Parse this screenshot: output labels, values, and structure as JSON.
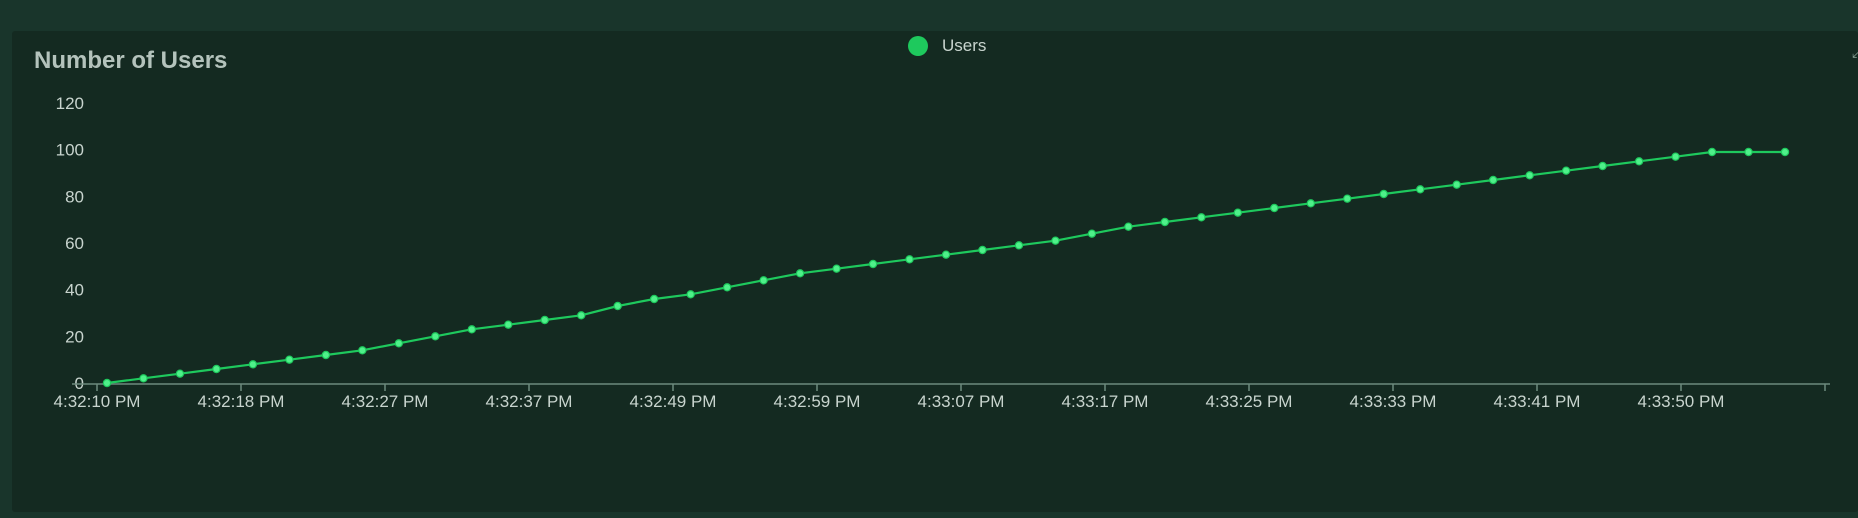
{
  "chart_data": {
    "type": "line",
    "title": "Number of Users",
    "xlabel": "",
    "ylabel": "",
    "ylim": [
      0,
      120
    ],
    "yticks": [
      0,
      20,
      40,
      60,
      80,
      100,
      120
    ],
    "x_tick_labels": [
      "4:32:10 PM",
      "4:32:18 PM",
      "4:32:27 PM",
      "4:32:37 PM",
      "4:32:49 PM",
      "4:32:59 PM",
      "4:33:07 PM",
      "4:33:17 PM",
      "4:33:25 PM",
      "4:33:33 PM",
      "4:33:41 PM",
      "4:33:50 PM"
    ],
    "grid": false,
    "legend_position": "top-center",
    "series": [
      {
        "name": "Users",
        "color": "#1ec95d",
        "values": [
          0,
          2,
          4,
          6,
          8,
          10,
          12,
          14,
          17,
          20,
          23,
          25,
          27,
          29,
          33,
          36,
          38,
          41,
          44,
          47,
          49,
          51,
          53,
          55,
          57,
          59,
          61,
          64,
          67,
          69,
          71,
          73,
          75,
          77,
          79,
          81,
          83,
          85,
          87,
          89,
          91,
          93,
          95,
          97,
          99,
          99,
          99
        ]
      }
    ]
  },
  "colors": {
    "background": "#19352b",
    "panel": "#142a21",
    "axis": "#6d8a7d",
    "text": "#c8d4ce"
  },
  "icons": {
    "corner": "expand-icon"
  }
}
